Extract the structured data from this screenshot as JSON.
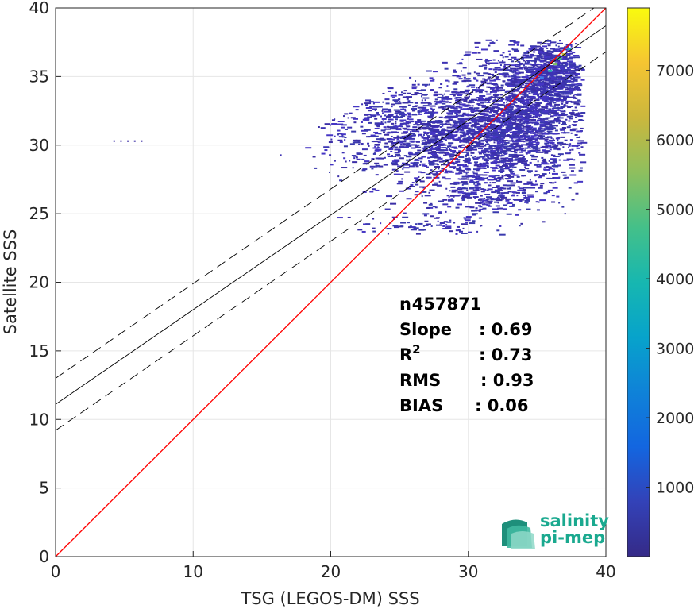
{
  "chart_data": {
    "type": "heatmap",
    "title": "",
    "xlabel": "TSG (LEGOS-DM) SSS",
    "ylabel": "Satellite SSS",
    "xlim": [
      0,
      40
    ],
    "ylim": [
      0,
      40
    ],
    "xticks": [
      0,
      10,
      20,
      30,
      40
    ],
    "yticks": [
      0,
      5,
      10,
      15,
      20,
      25,
      30,
      35,
      40
    ],
    "grid": true,
    "lines": [
      {
        "style": "solid",
        "color": "#ff0000",
        "intercept": 0,
        "slope": 1
      },
      {
        "style": "solid",
        "color": "#000000",
        "intercept": 11.1,
        "slope": 0.69
      },
      {
        "style": "dashed",
        "color": "#000000",
        "intercept": 13.0,
        "slope": 0.69
      },
      {
        "style": "dashed",
        "color": "#000000",
        "intercept": 9.2,
        "slope": 0.69
      }
    ],
    "colorbar": {
      "colormap": "parula",
      "range": [
        0,
        7900
      ],
      "ticks": [
        1000,
        2000,
        3000,
        4000,
        5000,
        6000,
        7000
      ]
    },
    "density_clusters": [
      {
        "x": 33.5,
        "y": 32.3,
        "sx": 2.6,
        "sy": 2.4,
        "n": 1400
      },
      {
        "x": 31.5,
        "y": 31.0,
        "sx": 3.6,
        "sy": 2.2,
        "n": 900
      },
      {
        "x": 27.5,
        "y": 30.5,
        "sx": 3.2,
        "sy": 1.6,
        "n": 600
      },
      {
        "x": 35.8,
        "y": 35.2,
        "sx": 1.2,
        "sy": 1.1,
        "n": 600
      },
      {
        "x": 24.0,
        "y": 31.5,
        "sx": 3.0,
        "sy": 1.7,
        "n": 300
      },
      {
        "x": 31.0,
        "y": 26.5,
        "sx": 2.5,
        "sy": 1.0,
        "n": 250
      },
      {
        "x": 26.5,
        "y": 24.1,
        "sx": 2.5,
        "sy": 0.5,
        "n": 80
      }
    ],
    "stats": [
      {
        "label": "n",
        "value": ": 457871"
      },
      {
        "label": "Slope",
        "value": ": 0.69"
      },
      {
        "label": "R",
        "sup": "2",
        "value": ": 0.73"
      },
      {
        "label": "RMS",
        "value": ": 0.93"
      },
      {
        "label": "BIAS",
        "value": ": 0.06"
      }
    ]
  },
  "logo": {
    "line1": "salinity",
    "line2": "pi-mep"
  }
}
